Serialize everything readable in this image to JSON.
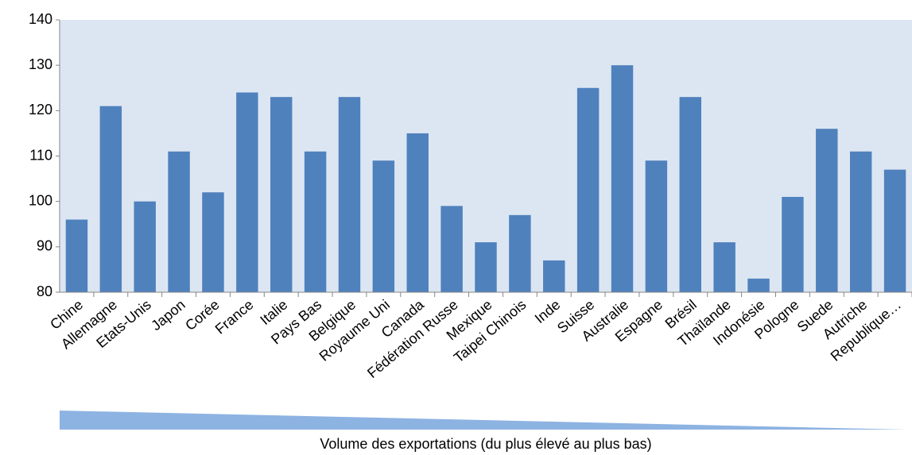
{
  "chart_data": {
    "type": "bar",
    "x_label": "Volume des exportations (du plus élevé au plus bas)",
    "categories": [
      "Chine",
      "Allemagne",
      "Etats-Unis",
      "Japon",
      "Corée",
      "France",
      "Italie",
      "Pays Bas",
      "Belgique",
      "Royaume Uni",
      "Canada",
      "Fédération Russe",
      "Mexique",
      "Taipei Chinois",
      "Inde",
      "Suisse",
      "Australie",
      "Espagne",
      "Brésil",
      "Thaïlande",
      "Indonésie",
      "Pologne",
      "Suede",
      "Autriche",
      "Republique…"
    ],
    "values": [
      96,
      121,
      100,
      111,
      102,
      124,
      123,
      111,
      123,
      109,
      115,
      99,
      91,
      97,
      87,
      125,
      130,
      109,
      123,
      91,
      83,
      101,
      116,
      111,
      107
    ],
    "color": "#4f81bd",
    "ylim": [
      80,
      140
    ],
    "yticks": [
      80,
      90,
      100,
      110,
      120,
      130,
      140
    ],
    "grid": false
  }
}
